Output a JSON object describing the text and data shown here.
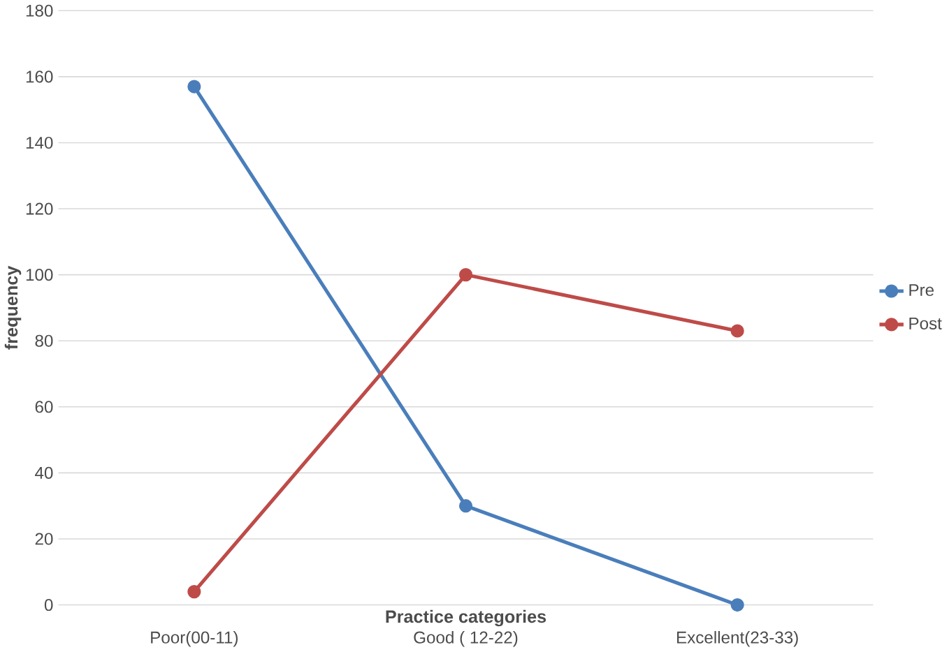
{
  "chart_data": {
    "type": "line",
    "xlabel": "Practice categories",
    "ylabel": "frequency",
    "categories": [
      "Poor(00-11)",
      "Good ( 12-22)",
      "Excellent(23-33)"
    ],
    "series": [
      {
        "name": "Pre",
        "color": "#4a7ebb",
        "values": [
          157,
          30,
          0
        ]
      },
      {
        "name": "Post",
        "color": "#be4b48",
        "values": [
          4,
          100,
          83
        ]
      }
    ],
    "ylim": [
      0,
      180
    ],
    "yticks": [
      0,
      20,
      40,
      60,
      80,
      100,
      120,
      140,
      160,
      180
    ],
    "grid": "y",
    "legend": "right",
    "marker": "circle",
    "line_style": "solid"
  }
}
